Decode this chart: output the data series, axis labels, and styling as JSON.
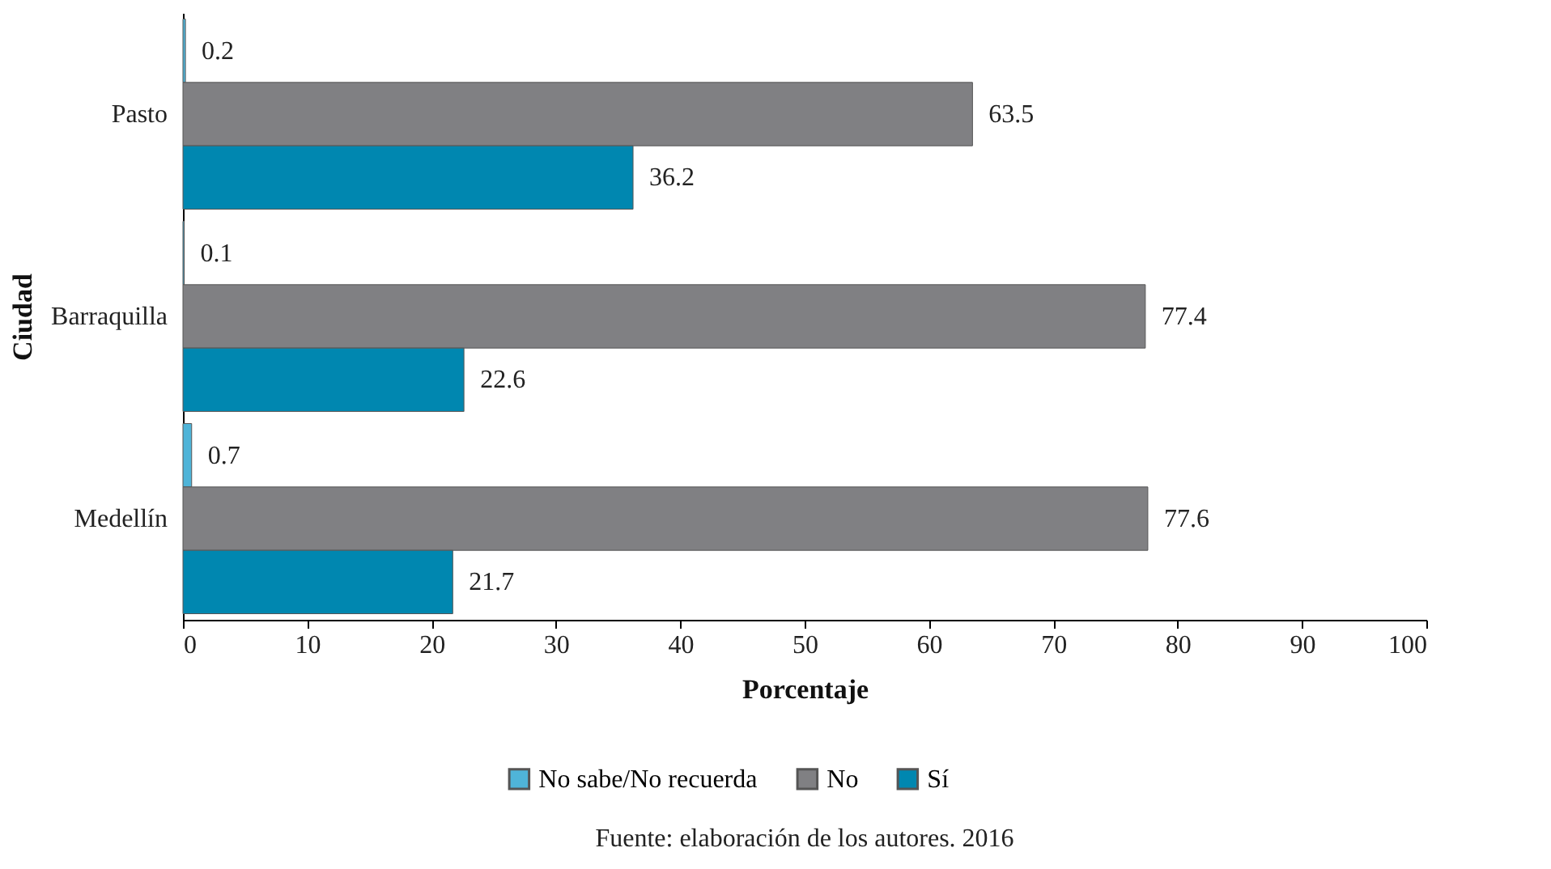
{
  "chart_data": {
    "type": "bar",
    "orientation": "horizontal",
    "xlabel": "Porcentaje",
    "ylabel": "Ciudad",
    "categories": [
      "Pasto",
      "Barraquilla",
      "Medellín"
    ],
    "series": [
      {
        "name": "No sabe/No recuerda",
        "color": "#4fb4d8",
        "values": [
          0.2,
          0.1,
          0.7
        ]
      },
      {
        "name": "No",
        "color": "#808083",
        "values": [
          63.5,
          77.4,
          77.6
        ]
      },
      {
        "name": "Sí",
        "color": "#0087b0",
        "values": [
          36.2,
          22.6,
          21.7
        ]
      }
    ],
    "xlim": [
      0,
      100
    ],
    "xticks": [
      0,
      10,
      20,
      30,
      40,
      50,
      60,
      70,
      80,
      90,
      100
    ],
    "data_labels": true,
    "grid": false,
    "legend": "bottom",
    "annotations": [
      "Fuente: elaboración de los autores. 2016"
    ]
  }
}
